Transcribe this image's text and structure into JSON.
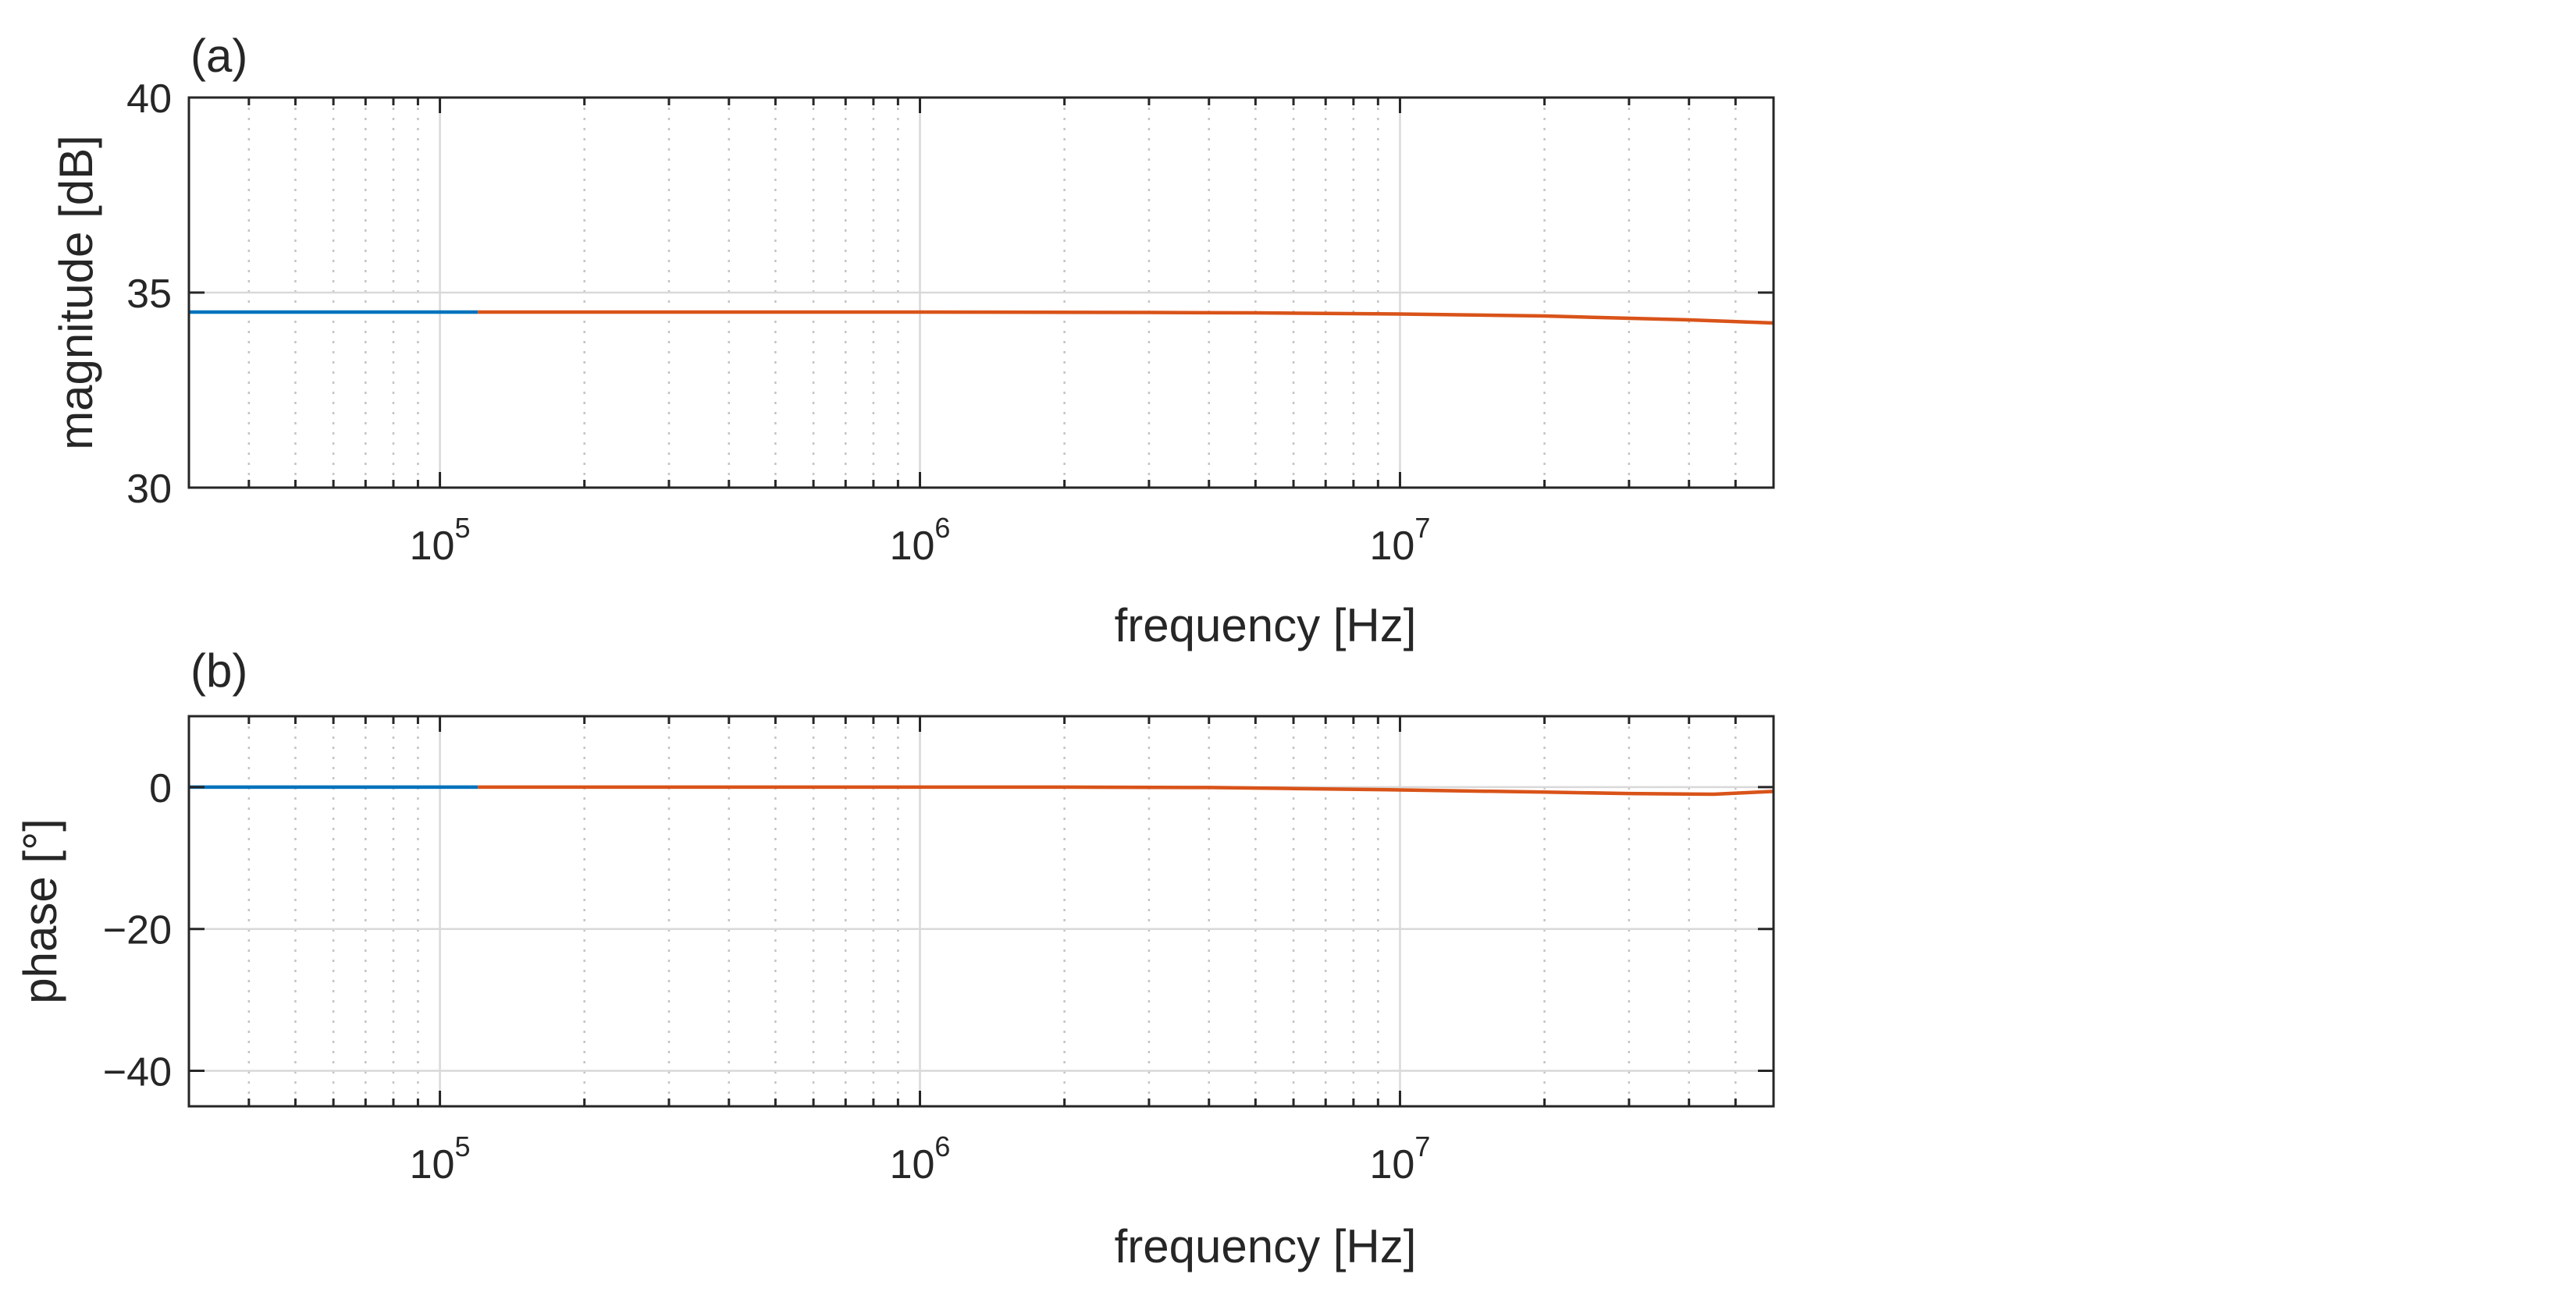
{
  "chart_data": [
    {
      "type": "line",
      "panel_label": "(a)",
      "xlabel": "frequency [Hz]",
      "ylabel": "magnitude [dB]",
      "xscale": "log",
      "xlim": [
        30000,
        60000000
      ],
      "ylim": [
        30,
        40
      ],
      "x_ticks": [
        {
          "base": "10",
          "exp": "5",
          "value": 100000
        },
        {
          "base": "10",
          "exp": "6",
          "value": 1000000
        },
        {
          "base": "10",
          "exp": "7",
          "value": 10000000
        }
      ],
      "y_ticks": [
        {
          "label": "30",
          "value": 30
        },
        {
          "label": "35",
          "value": 35
        },
        {
          "label": "40",
          "value": 40
        }
      ],
      "grid": true,
      "series": [
        {
          "color": "#0072bd",
          "x": [
            30000,
            50000,
            80000,
            120000
          ],
          "y": [
            34.5,
            34.5,
            34.5,
            34.5
          ]
        },
        {
          "color": "#d95319",
          "x": [
            120000,
            500000,
            1000000,
            3000000,
            5000000,
            10000000,
            20000000,
            40000000,
            60000000
          ],
          "y": [
            34.5,
            34.5,
            34.5,
            34.49,
            34.48,
            34.45,
            34.4,
            34.3,
            34.22
          ]
        }
      ]
    },
    {
      "type": "line",
      "panel_label": "(b)",
      "xlabel": "frequency [Hz]",
      "ylabel": "phase [°]",
      "xscale": "log",
      "xlim": [
        30000,
        60000000
      ],
      "ylim": [
        -45,
        10
      ],
      "x_ticks": [
        {
          "base": "10",
          "exp": "5",
          "value": 100000
        },
        {
          "base": "10",
          "exp": "6",
          "value": 1000000
        },
        {
          "base": "10",
          "exp": "7",
          "value": 10000000
        }
      ],
      "y_ticks": [
        {
          "label": "0",
          "value": 0
        },
        {
          "label": "−20",
          "value": -20
        },
        {
          "label": "−40",
          "value": -40
        }
      ],
      "grid": true,
      "series": [
        {
          "color": "#0072bd",
          "x": [
            30000,
            50000,
            80000,
            120000
          ],
          "y": [
            0,
            0,
            0,
            0
          ]
        },
        {
          "color": "#d95319",
          "x": [
            120000,
            500000,
            1000000,
            2000000,
            4000000,
            6000000,
            10000000,
            20000000,
            30000000,
            45000000,
            60000000
          ],
          "y": [
            0,
            0,
            0,
            0,
            -0.05,
            -0.2,
            -0.4,
            -0.7,
            -0.9,
            -1.0,
            -0.6
          ]
        }
      ]
    }
  ]
}
